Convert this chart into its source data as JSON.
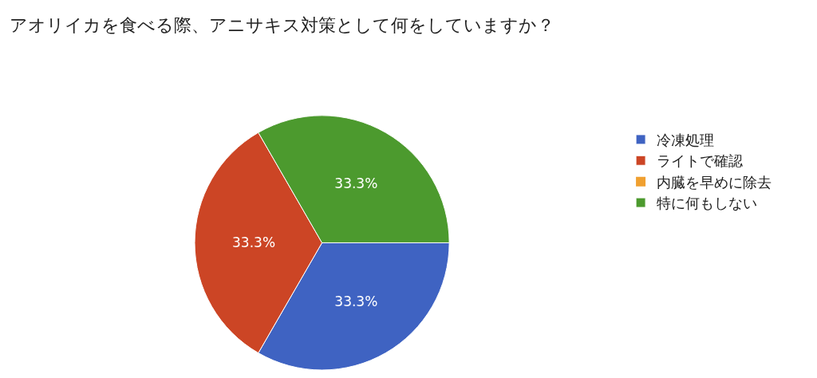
{
  "chart_data": {
    "type": "pie",
    "title": "アオリイカを食べる際、アニサキス対策として何をしていますか？",
    "categories": [
      "冷凍処理",
      "ライトで確認",
      "内臓を早めに除去",
      "特に何もしない"
    ],
    "values": [
      33.3,
      33.3,
      0,
      33.3
    ],
    "colors": [
      "#3f63c2",
      "#cc4525",
      "#f0a030",
      "#4c9a2e"
    ],
    "value_labels": [
      "33.3%",
      "33.3%",
      null,
      "33.3%"
    ],
    "legend": "right"
  }
}
